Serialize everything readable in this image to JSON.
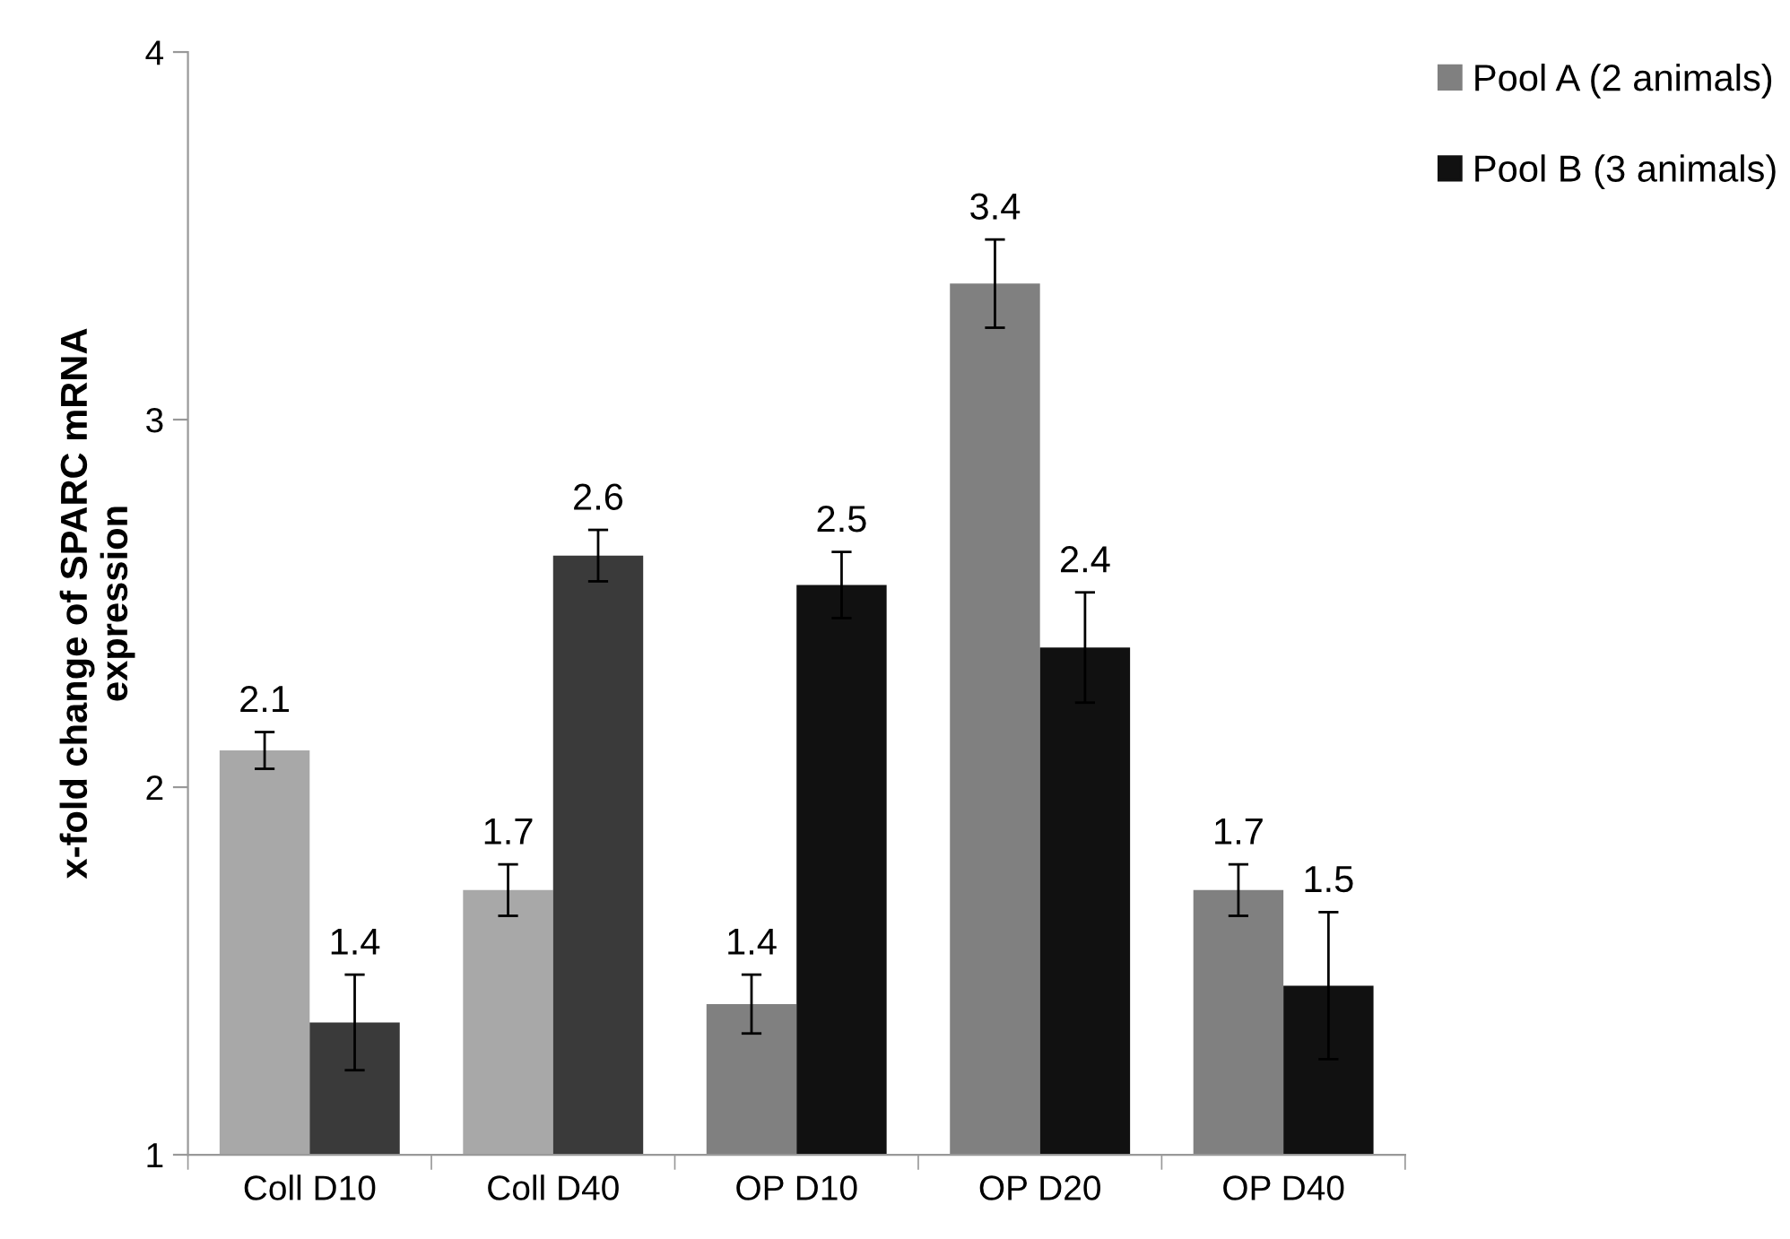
{
  "chart_data": {
    "type": "bar",
    "ylabel": "x-fold change of SPARC mRNA\nexpression",
    "categories": [
      "Coll D10",
      "Coll D40",
      "OP D10",
      "OP D20",
      "OP D40"
    ],
    "series": [
      {
        "name": "Pool A (2 animals)",
        "color": "#808080",
        "colors": [
          "#a8a8a8",
          "#a8a8a8",
          "#808080",
          "#808080",
          "#808080"
        ],
        "values": [
          2.1,
          1.72,
          1.41,
          3.37,
          1.72
        ],
        "errors": [
          0.05,
          0.07,
          0.08,
          0.12,
          0.07
        ],
        "value_labels": [
          "2.1",
          "1.7",
          "1.4",
          "3.4",
          "1.7"
        ]
      },
      {
        "name": "Pool B (3 animals)",
        "color": "#111111",
        "colors": [
          "#3a3a3a",
          "#3a3a3a",
          "#111111",
          "#111111",
          "#111111"
        ],
        "values": [
          1.36,
          2.63,
          2.55,
          2.38,
          1.46
        ],
        "errors": [
          0.13,
          0.07,
          0.09,
          0.15,
          0.2
        ],
        "value_labels": [
          "1.4",
          "2.6",
          "2.5",
          "2.4",
          "1.5"
        ]
      }
    ],
    "ylim": [
      1,
      4
    ],
    "yticks": [
      1,
      2,
      3,
      4
    ],
    "grid": false,
    "legend": "top right"
  }
}
